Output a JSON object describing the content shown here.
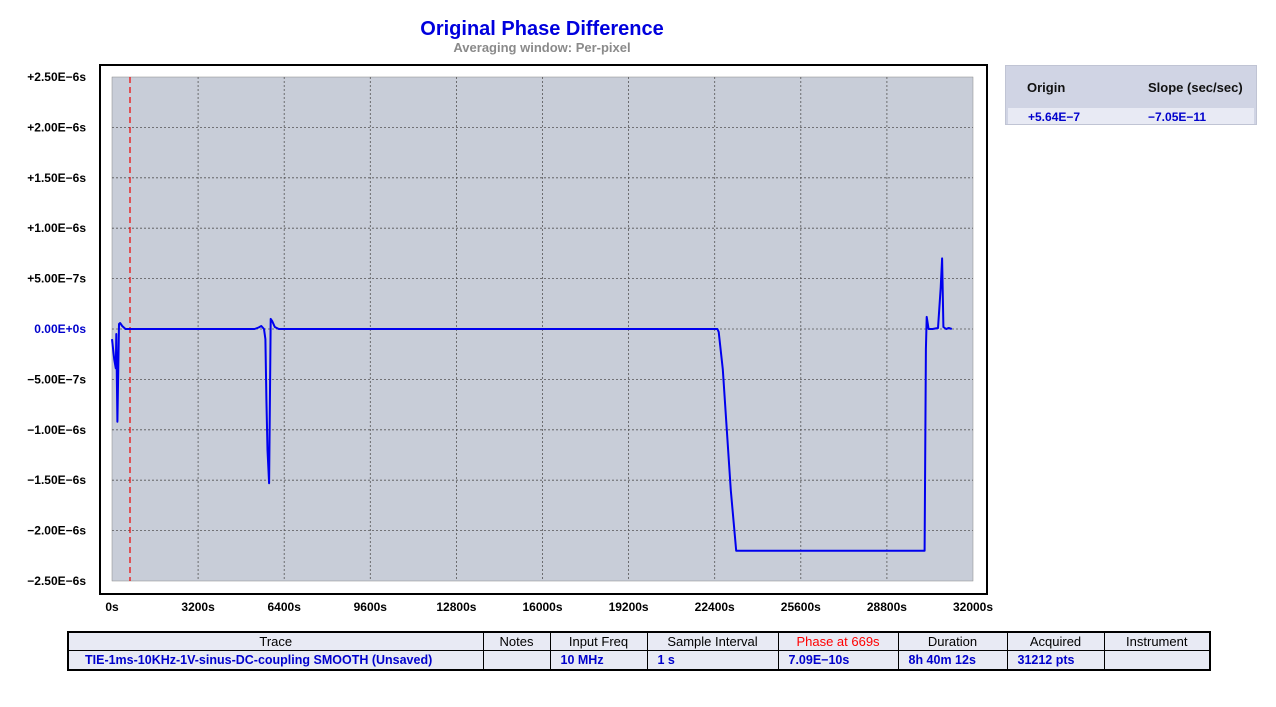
{
  "header": {
    "title": "Original Phase Difference",
    "subtitle": "Averaging window: Per-pixel"
  },
  "chart_data": {
    "type": "line",
    "title": "Original Phase Difference",
    "subtitle": "Averaging window: Per-pixel",
    "xlim": [
      0,
      32000
    ],
    "ylim": [
      -2.5e-06,
      2.5e-06
    ],
    "x_ticks": [
      0,
      3200,
      6400,
      9600,
      12800,
      16000,
      19200,
      22400,
      25600,
      28800,
      32000
    ],
    "x_tick_labels": [
      "0s",
      "3200s",
      "6400s",
      "9600s",
      "12800s",
      "16000s",
      "19200s",
      "22400s",
      "25600s",
      "28800s",
      "32000s"
    ],
    "y_ticks": [
      2.5e-06,
      2e-06,
      1.5e-06,
      1e-06,
      5e-07,
      0,
      -5e-07,
      -1e-06,
      -1.5e-06,
      -2e-06,
      -2.5e-06
    ],
    "y_tick_labels": [
      "+2.50E−6s",
      "+2.00E−6s",
      "+1.50E−6s",
      "+1.00E−6s",
      "+5.00E−7s",
      "0.00E+0s",
      "−5.00E−7s",
      "−1.00E−6s",
      "−1.50E−6s",
      "−2.00E−6s",
      "−2.50E−6s"
    ],
    "zero_tick_color": "#0000cc",
    "grid": true,
    "plot_background": "#c8cdd8",
    "cursor": {
      "x": 669,
      "color": "#ee0000"
    },
    "series": [
      {
        "color": "#0000ee",
        "x": [
          0,
          80,
          140,
          160,
          200,
          260,
          300,
          380,
          500,
          669,
          1000,
          2000,
          3000,
          4000,
          5000,
          5300,
          5450,
          5550,
          5650,
          5700,
          5740,
          5780,
          5840,
          5900,
          5950,
          6050,
          6200,
          6500,
          7000,
          8000,
          9000,
          9600,
          10000,
          11000,
          12000,
          13000,
          14000,
          15000,
          16000,
          17000,
          18000,
          19000,
          20000,
          21000,
          22000,
          22500,
          22550,
          22700,
          22850,
          23000,
          23200,
          23500,
          24000,
          26000,
          28000,
          29000,
          30000,
          30200,
          30250,
          30280,
          30350,
          30500,
          30700,
          30800,
          30850,
          30900,
          31000,
          31100,
          31212
        ],
        "y": [
          -1e-07,
          -3e-07,
          -3.9e-07,
          -5e-08,
          -9.2e-07,
          5e-08,
          6e-08,
          3e-08,
          0,
          0,
          0,
          0,
          0,
          0,
          0,
          0,
          1.5e-08,
          3e-08,
          0,
          -1e-07,
          -7e-07,
          -1.2e-06,
          -1.53e-06,
          1e-07,
          8e-08,
          2e-08,
          0,
          0,
          0,
          0,
          0,
          0,
          0,
          0,
          0,
          0,
          0,
          0,
          0,
          0,
          0,
          0,
          0,
          0,
          0,
          0,
          -3e-08,
          -4e-07,
          -1e-06,
          -1.6e-06,
          -2.2e-06,
          -2.2e-06,
          -2.2e-06,
          -2.2e-06,
          -2.2e-06,
          -2.2e-06,
          -2.2e-06,
          -2.2e-06,
          -2e-07,
          1.2e-07,
          0,
          0,
          1e-08,
          4.1e-07,
          7e-07,
          2e-08,
          0,
          1e-08,
          0
        ]
      }
    ]
  },
  "info": {
    "origin_label": "Origin",
    "slope_label": "Slope (sec/sec)",
    "origin_value": "+5.64E−7",
    "slope_value": "−7.05E−11"
  },
  "table": {
    "headers": {
      "trace": "Trace",
      "notes": "Notes",
      "input_freq": "Input Freq",
      "sample_interval": "Sample Interval",
      "phase": "Phase at 669s",
      "duration": "Duration",
      "acquired": "Acquired",
      "instrument": "Instrument"
    },
    "row": {
      "trace": "TIE-1ms-10KHz-1V-sinus-DC-coupling  SMOOTH  (Unsaved)",
      "notes": "",
      "input_freq": "10 MHz",
      "sample_interval": "1  s",
      "phase": "7.09E−10s",
      "duration": "8h 40m 12s",
      "acquired": "31212 pts",
      "instrument": ""
    },
    "phase_header_color": "#ff0000"
  }
}
